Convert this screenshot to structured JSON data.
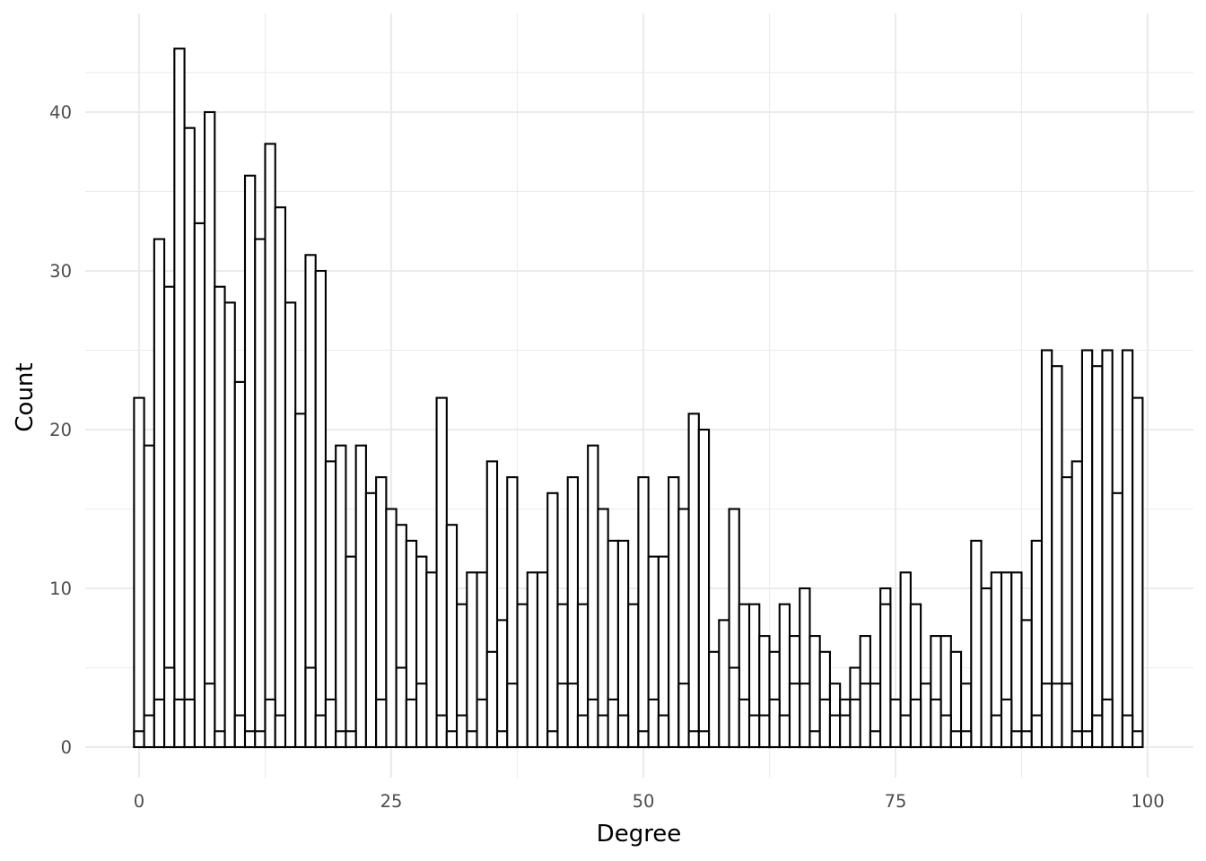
{
  "chart_data": {
    "type": "bar",
    "title": "",
    "xlabel": "Degree",
    "ylabel": "Count",
    "xlim": [
      -0.5,
      99.5
    ],
    "ylim": [
      0,
      44
    ],
    "x_ticks": [
      0,
      25,
      50,
      75,
      100
    ],
    "y_ticks": [
      0,
      10,
      20,
      30,
      40
    ],
    "grid": true,
    "legend": "none",
    "x": [
      0,
      1,
      2,
      3,
      4,
      5,
      6,
      7,
      8,
      9,
      10,
      11,
      12,
      13,
      14,
      15,
      16,
      17,
      18,
      19,
      20,
      21,
      22,
      23,
      24,
      25,
      26,
      27,
      28,
      29,
      30,
      31,
      32,
      33,
      34,
      35,
      36,
      37,
      38,
      39,
      40,
      41,
      42,
      43,
      44,
      45,
      46,
      47,
      48,
      49,
      50,
      51,
      52,
      53,
      54,
      55,
      56,
      57,
      58,
      59,
      60,
      61,
      62,
      63,
      64,
      65,
      66,
      67,
      68,
      69,
      70,
      71,
      72,
      73,
      74,
      75,
      76,
      77,
      78,
      79,
      80,
      81,
      82,
      83,
      84,
      85,
      86,
      87,
      88,
      89,
      90,
      91,
      92,
      93,
      94,
      95,
      96,
      97,
      98,
      99
    ],
    "series": [
      {
        "values": [
          22,
          19,
          32,
          29,
          44,
          39,
          33,
          40,
          29,
          28,
          23,
          36,
          32,
          38,
          34,
          28,
          21,
          31,
          30,
          18,
          19,
          12,
          19,
          16,
          17,
          15,
          14,
          13,
          12,
          11,
          22,
          14,
          9,
          11,
          11,
          18,
          8,
          17,
          9,
          11,
          11,
          16,
          9,
          17,
          9,
          19,
          15,
          13,
          13,
          9,
          17,
          12,
          12,
          17,
          15,
          21,
          20,
          6,
          8,
          15,
          9,
          9,
          7,
          6,
          9,
          7,
          10,
          7,
          6,
          4,
          3,
          5,
          7,
          4,
          10,
          3,
          11,
          9,
          4,
          7,
          7,
          6,
          4,
          13,
          10,
          11,
          11,
          11,
          8,
          13,
          25,
          24,
          17,
          18,
          25,
          24,
          25,
          16,
          25,
          22
        ]
      },
      {
        "values": [
          1,
          2,
          3,
          5,
          3,
          3,
          0,
          4,
          1,
          0,
          2,
          1,
          1,
          3,
          2,
          0,
          0,
          5,
          2,
          3,
          1,
          1,
          0,
          0,
          3,
          0,
          5,
          3,
          4,
          0,
          2,
          1,
          2,
          1,
          3,
          6,
          1,
          4,
          0,
          0,
          0,
          1,
          4,
          4,
          2,
          3,
          2,
          3,
          2,
          0,
          1,
          3,
          2,
          0,
          4,
          1,
          1,
          0,
          0,
          5,
          3,
          2,
          2,
          3,
          2,
          4,
          4,
          1,
          3,
          2,
          2,
          3,
          4,
          1,
          9,
          0,
          2,
          3,
          0,
          3,
          2,
          1,
          1,
          0,
          0,
          2,
          3,
          1,
          1,
          2,
          4,
          4,
          4,
          1,
          1,
          2,
          3,
          0,
          2,
          1
        ]
      }
    ]
  }
}
